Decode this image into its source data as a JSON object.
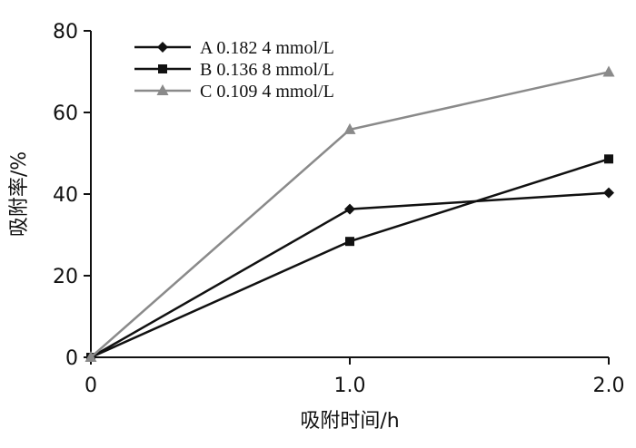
{
  "chart_data": {
    "type": "line",
    "title": "",
    "xlabel": "吸附时间/h",
    "ylabel": "吸附率/%",
    "x": [
      0,
      1.0,
      2.0
    ],
    "x_tick_labels": [
      "0",
      "1.0",
      "2.0"
    ],
    "y_ticks": [
      0,
      20,
      40,
      60,
      80
    ],
    "y_tick_labels": [
      "0",
      "20",
      "40",
      "60",
      "80"
    ],
    "xlim": [
      0,
      2.0
    ],
    "ylim": [
      0,
      80
    ],
    "grid": false,
    "legend_position": "top-left",
    "series": [
      {
        "name": "A 0.182 4 mmol/L",
        "values": [
          0,
          36.3,
          40.3
        ],
        "marker": "diamond",
        "color": "#111111"
      },
      {
        "name": "B 0.136 8 mmol/L",
        "values": [
          0,
          28.4,
          48.6
        ],
        "marker": "square",
        "color": "#111111"
      },
      {
        "name": "C 0.109 4 mmol/L",
        "values": [
          0,
          55.8,
          69.9
        ],
        "marker": "triangle",
        "color": "#8a8a8a"
      }
    ]
  }
}
